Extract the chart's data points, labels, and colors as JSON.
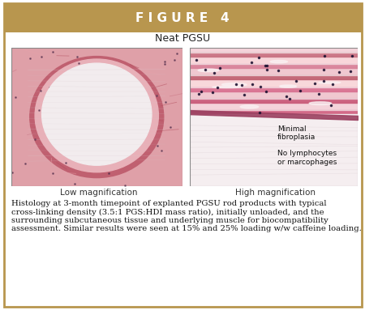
{
  "title_text": "F I G U R E   4",
  "title_bg_color": "#B8964E",
  "title_text_color": "#FFFFFF",
  "subtitle_text": "Neat PGSU",
  "left_label": "Low magnification",
  "right_label": "High magnification",
  "annotation1": "Minimal\nfibroplasia",
  "annotation2": "No lymphocytes\nor marcophages",
  "caption": "Histology at 3-month timepoint of explanted PGSU rod products with typical cross-linking density (3.5:1 PGS:HDI mass ratio), initially unloaded, and the surrounding subcutaneous tissue and underlying muscle for biocompatibility assessment. Similar results were seen at 15% and 25% loading w/w caffeine loading.",
  "border_color": "#B8964E",
  "bg_color": "#FFFFFF",
  "fig_width": 4.5,
  "fig_height": 3.83
}
